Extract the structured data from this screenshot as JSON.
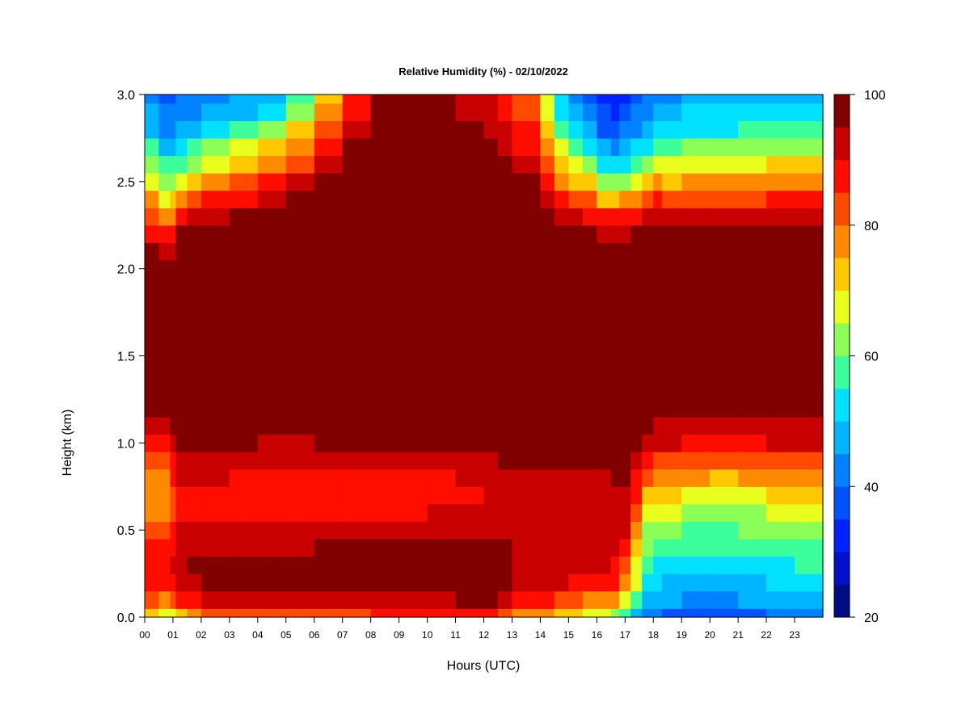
{
  "chart_data": {
    "type": "heatmap",
    "title": "Relative Humidity (%) - 02/10/2022",
    "xlabel": "Hours (UTC)",
    "ylabel": "Height (km)",
    "xlim": [
      0,
      24
    ],
    "ylim": [
      0,
      3
    ],
    "x_ticks": [
      "00",
      "01",
      "02",
      "03",
      "04",
      "05",
      "06",
      "07",
      "08",
      "09",
      "10",
      "11",
      "12",
      "13",
      "14",
      "15",
      "16",
      "17",
      "18",
      "19",
      "20",
      "21",
      "22",
      "23"
    ],
    "y_ticks": [
      "0.0",
      "0.5",
      "1.0",
      "1.5",
      "2.0",
      "2.5",
      "3.0"
    ],
    "colorbar": {
      "min": 20,
      "max": 100,
      "step": 5,
      "tick_labels": [
        "20",
        "40",
        "60",
        "80",
        "100"
      ],
      "colors": [
        "#000c85",
        "#0011c9",
        "#0022ff",
        "#0051ff",
        "#0081ff",
        "#00b5ff",
        "#00e1ff",
        "#3cff9c",
        "#8bff55",
        "#e9ff1e",
        "#ffc800",
        "#ff8a00",
        "#ff4a00",
        "#ff0d00",
        "#c80000",
        "#800000"
      ]
    },
    "hours": [
      0,
      0.5,
      0.9,
      1.1,
      1.5,
      2,
      3,
      4,
      5,
      6,
      7,
      8,
      9,
      10,
      11,
      12,
      12.5,
      13,
      14,
      14.5,
      15,
      15.5,
      16,
      16.5,
      16.8,
      17.2,
      17.6,
      18,
      18.1,
      18.3,
      19,
      20,
      21,
      22,
      23,
      24
    ],
    "heights_km": [
      0,
      0.1,
      0.2,
      0.3,
      0.4,
      0.5,
      0.6,
      0.7,
      0.8,
      0.9,
      1.0,
      1.1,
      1.2,
      1.3,
      1.4,
      1.5,
      1.6,
      1.7,
      1.8,
      1.9,
      2.0,
      2.1,
      2.2,
      2.3,
      2.4,
      2.5,
      2.6,
      2.7,
      2.8,
      2.9,
      3.0
    ],
    "rh_percent_profiles": [
      [
        75,
        82,
        88,
        90,
        88,
        84,
        80,
        78,
        80,
        82,
        88,
        92,
        96,
        98,
        99,
        100,
        100,
        100,
        100,
        100,
        99,
        96,
        90,
        84,
        78,
        72,
        65,
        58,
        52,
        48,
        45
      ],
      [
        72,
        80,
        86,
        88,
        86,
        82,
        79,
        77,
        79,
        82,
        88,
        92,
        96,
        98,
        99,
        100,
        100,
        100,
        100,
        100,
        98,
        94,
        88,
        80,
        72,
        65,
        58,
        52,
        46,
        42,
        40
      ],
      [
        66,
        76,
        84,
        88,
        86,
        82,
        80,
        78,
        80,
        84,
        90,
        94,
        97,
        99,
        100,
        100,
        100,
        100,
        100,
        99,
        96,
        90,
        82,
        74,
        66,
        58,
        52,
        46,
        42,
        38,
        36
      ],
      [
        70,
        85,
        92,
        94,
        92,
        90,
        88,
        88,
        90,
        92,
        95,
        97,
        99,
        100,
        100,
        100,
        100,
        100,
        100,
        100,
        100,
        98,
        94,
        84,
        74,
        66,
        58,
        52,
        46,
        42,
        40
      ],
      [
        76,
        88,
        94,
        95,
        93,
        90,
        88,
        88,
        90,
        92,
        95,
        97,
        99,
        100,
        100,
        100,
        100,
        100,
        100,
        100,
        100,
        100,
        96,
        90,
        78,
        68,
        60,
        52,
        46,
        42,
        40
      ],
      [
        80,
        90,
        95,
        96,
        93,
        90,
        88,
        88,
        90,
        92,
        95,
        97,
        99,
        100,
        100,
        100,
        100,
        100,
        100,
        100,
        100,
        100,
        97,
        93,
        86,
        78,
        68,
        58,
        50,
        45,
        42
      ],
      [
        84,
        92,
        96,
        96,
        93,
        90,
        88,
        88,
        90,
        92,
        96,
        98,
        99,
        100,
        100,
        100,
        100,
        100,
        100,
        100,
        100,
        100,
        98,
        94,
        88,
        80,
        70,
        62,
        54,
        48,
        44
      ],
      [
        84,
        92,
        96,
        96,
        94,
        91,
        89,
        88,
        89,
        91,
        95,
        97,
        99,
        100,
        100,
        100,
        100,
        100,
        100,
        100,
        100,
        100,
        99,
        96,
        90,
        84,
        76,
        68,
        58,
        50,
        46
      ],
      [
        84,
        92,
        96,
        96,
        94,
        90,
        88,
        87,
        88,
        90,
        94,
        97,
        99,
        100,
        100,
        100,
        100,
        100,
        100,
        100,
        100,
        100,
        100,
        98,
        94,
        88,
        80,
        72,
        64,
        56,
        52
      ],
      [
        84,
        92,
        97,
        97,
        95,
        92,
        89,
        88,
        89,
        91,
        95,
        97,
        99,
        100,
        100,
        100,
        100,
        100,
        100,
        100,
        100,
        100,
        100,
        100,
        98,
        94,
        88,
        82,
        76,
        70,
        66
      ],
      [
        84,
        92,
        97,
        98,
        96,
        92,
        89,
        88,
        89,
        91,
        95,
        97,
        99,
        100,
        100,
        100,
        100,
        100,
        100,
        100,
        100,
        100,
        100,
        100,
        100,
        99,
        96,
        92,
        88,
        84,
        80
      ],
      [
        84,
        92,
        97,
        98,
        96,
        92,
        89,
        87,
        88,
        90,
        95,
        98,
        99,
        100,
        100,
        100,
        100,
        100,
        100,
        100,
        100,
        100,
        100,
        100,
        100,
        100,
        100,
        98,
        96,
        94,
        92
      ],
      [
        86,
        94,
        98,
        99,
        96,
        93,
        90,
        88,
        89,
        92,
        96,
        98,
        99,
        100,
        100,
        100,
        100,
        100,
        100,
        100,
        100,
        100,
        100,
        100,
        100,
        100,
        100,
        100,
        100,
        99,
        98
      ],
      [
        84,
        92,
        97,
        98,
        96,
        93,
        89,
        87,
        88,
        91,
        96,
        98,
        99,
        100,
        100,
        100,
        100,
        100,
        100,
        100,
        100,
        100,
        100,
        100,
        100,
        100,
        100,
        100,
        100,
        100,
        100
      ],
      [
        88,
        96,
        99,
        99,
        97,
        94,
        91,
        89,
        90,
        93,
        97,
        99,
        100,
        100,
        100,
        100,
        100,
        100,
        100,
        100,
        100,
        100,
        100,
        100,
        100,
        100,
        100,
        100,
        98,
        96,
        95
      ],
      [
        90,
        98,
        100,
        100,
        98,
        95,
        92,
        90,
        91,
        94,
        98,
        99,
        100,
        100,
        100,
        100,
        100,
        100,
        100,
        100,
        100,
        100,
        100,
        100,
        100,
        99,
        98,
        96,
        94,
        92,
        91
      ],
      [
        86,
        94,
        98,
        98,
        96,
        94,
        92,
        90,
        92,
        95,
        98,
        99,
        100,
        100,
        100,
        100,
        100,
        100,
        100,
        100,
        100,
        100,
        100,
        100,
        100,
        98,
        96,
        94,
        92,
        90,
        89
      ],
      [
        78,
        88,
        94,
        95,
        94,
        93,
        92,
        91,
        92,
        95,
        98,
        99,
        100,
        100,
        100,
        100,
        100,
        100,
        100,
        100,
        100,
        100,
        100,
        100,
        99,
        97,
        94,
        92,
        88,
        85,
        84
      ],
      [
        76,
        86,
        92,
        94,
        94,
        93,
        92,
        91,
        92,
        95,
        98,
        99,
        100,
        100,
        100,
        100,
        100,
        100,
        100,
        100,
        100,
        100,
        100,
        99,
        97,
        94,
        90,
        86,
        82,
        78,
        76
      ],
      [
        74,
        84,
        91,
        93,
        94,
        93,
        92,
        91,
        92,
        95,
        98,
        99,
        100,
        100,
        100,
        100,
        100,
        100,
        100,
        100,
        100,
        100,
        99,
        96,
        92,
        85,
        78,
        72,
        65,
        60,
        58
      ],
      [
        72,
        82,
        90,
        93,
        93,
        93,
        92,
        91,
        92,
        95,
        98,
        99,
        100,
        100,
        100,
        100,
        100,
        100,
        100,
        100,
        100,
        99,
        95,
        90,
        82,
        74,
        66,
        58,
        52,
        48,
        45
      ],
      [
        70,
        80,
        88,
        92,
        93,
        93,
        92,
        92,
        93,
        96,
        99,
        100,
        100,
        100,
        100,
        100,
        100,
        100,
        100,
        100,
        100,
        100,
        97,
        92,
        84,
        74,
        64,
        55,
        48,
        44,
        42
      ],
      [
        66,
        78,
        86,
        91,
        93,
        93,
        93,
        93,
        94,
        97,
        99,
        100,
        100,
        100,
        100,
        100,
        100,
        100,
        100,
        100,
        100,
        98,
        93,
        86,
        76,
        66,
        56,
        48,
        42,
        38,
        36
      ],
      [
        64,
        76,
        86,
        90,
        93,
        93,
        93,
        93,
        95,
        97,
        99,
        100,
        100,
        100,
        100,
        100,
        100,
        100,
        100,
        100,
        100,
        97,
        92,
        84,
        72,
        60,
        50,
        42,
        36,
        32,
        30
      ],
      [
        60,
        74,
        84,
        88,
        91,
        92,
        93,
        93,
        95,
        97,
        99,
        100,
        100,
        100,
        100,
        100,
        100,
        100,
        100,
        100,
        100,
        98,
        94,
        86,
        74,
        62,
        52,
        44,
        38,
        34,
        32
      ],
      [
        52,
        64,
        74,
        80,
        84,
        88,
        92,
        94,
        96,
        98,
        99,
        100,
        100,
        100,
        100,
        100,
        100,
        100,
        100,
        100,
        100,
        99,
        95,
        88,
        78,
        66,
        56,
        48,
        42,
        38,
        36
      ],
      [
        44,
        52,
        56,
        58,
        62,
        66,
        70,
        76,
        82,
        88,
        93,
        96,
        98,
        99,
        100,
        100,
        100,
        100,
        100,
        100,
        100,
        99,
        95,
        90,
        80,
        70,
        60,
        52,
        46,
        42,
        40
      ],
      [
        40,
        46,
        50,
        54,
        58,
        62,
        66,
        72,
        78,
        84,
        90,
        94,
        97,
        98,
        99,
        100,
        100,
        100,
        100,
        100,
        100,
        99,
        95,
        90,
        82,
        72,
        62,
        54,
        48,
        44,
        42
      ],
      [
        40,
        46,
        50,
        54,
        58,
        62,
        66,
        72,
        78,
        84,
        90,
        94,
        97,
        98,
        99,
        100,
        100,
        100,
        100,
        98,
        96,
        95,
        96,
        94,
        90,
        82,
        72,
        62,
        54,
        48,
        45
      ],
      [
        40,
        46,
        50,
        54,
        58,
        62,
        66,
        72,
        78,
        84,
        90,
        94,
        97,
        98,
        99,
        100,
        100,
        100,
        100,
        100,
        100,
        99,
        95,
        90,
        82,
        72,
        62,
        54,
        48,
        44,
        42
      ],
      [
        38,
        44,
        48,
        52,
        56,
        60,
        64,
        70,
        76,
        83,
        90,
        94,
        96,
        98,
        99,
        100,
        100,
        100,
        100,
        100,
        100,
        100,
        96,
        90,
        84,
        76,
        68,
        60,
        54,
        50,
        47
      ],
      [
        36,
        42,
        46,
        50,
        55,
        59,
        63,
        68,
        74,
        82,
        89,
        93,
        96,
        98,
        99,
        100,
        100,
        100,
        100,
        100,
        100,
        100,
        96,
        90,
        84,
        76,
        68,
        60,
        54,
        50,
        47
      ],
      [
        38,
        44,
        48,
        52,
        56,
        60,
        64,
        69,
        75,
        82,
        89,
        93,
        96,
        98,
        99,
        100,
        100,
        100,
        100,
        100,
        100,
        100,
        96,
        90,
        84,
        76,
        68,
        60,
        54,
        50,
        47
      ],
      [
        40,
        46,
        50,
        54,
        57,
        61,
        65,
        70,
        76,
        83,
        90,
        94,
        97,
        98,
        99,
        100,
        100,
        100,
        100,
        100,
        100,
        100,
        97,
        91,
        85,
        78,
        70,
        62,
        56,
        52,
        49
      ],
      [
        42,
        47,
        51,
        55,
        58,
        62,
        66,
        71,
        77,
        84,
        90,
        94,
        97,
        98,
        99,
        100,
        100,
        100,
        100,
        100,
        100,
        100,
        97,
        91,
        85,
        78,
        70,
        62,
        56,
        52,
        49
      ],
      [
        42,
        47,
        51,
        55,
        58,
        62,
        66,
        71,
        77,
        84,
        90,
        94,
        97,
        98,
        99,
        100,
        100,
        100,
        100,
        100,
        100,
        100,
        97,
        91,
        85,
        78,
        70,
        62,
        56,
        52,
        49
      ]
    ]
  }
}
